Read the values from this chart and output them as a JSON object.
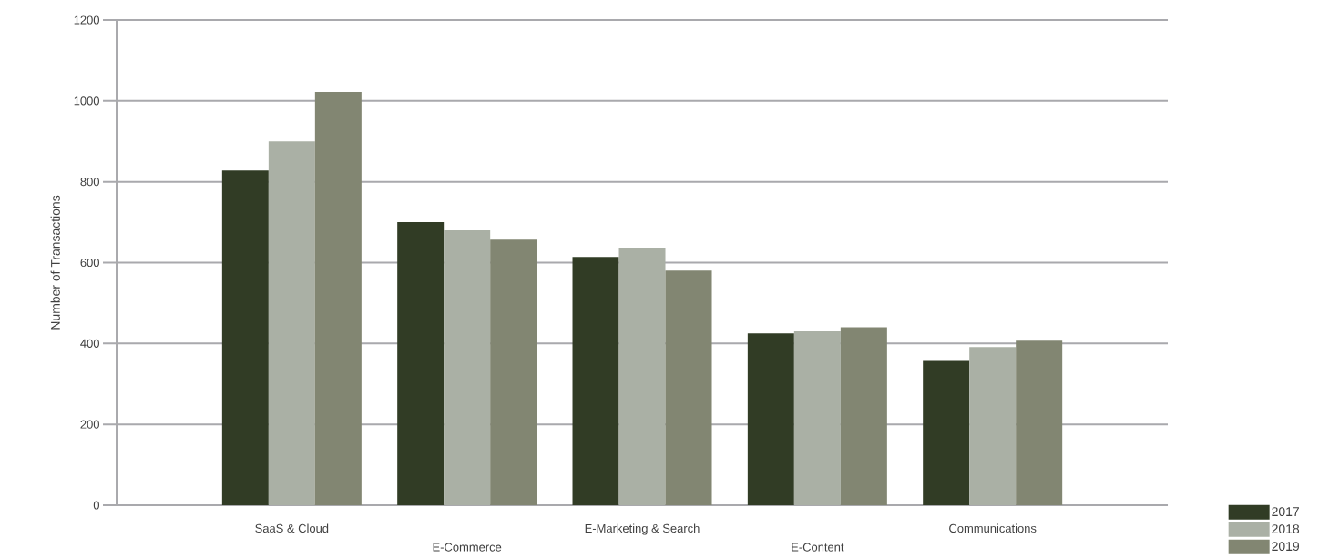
{
  "chart_data": {
    "type": "bar",
    "ylabel": "Number of Transactions",
    "categories": [
      "SaaS & Cloud",
      "E-Commerce",
      "E-Marketing & Search",
      "E-Content",
      "Communications"
    ],
    "series": [
      {
        "name": "2017",
        "color": "#313c25",
        "values": [
          828,
          700,
          614,
          425,
          357
        ]
      },
      {
        "name": "2018",
        "color": "#aab0a5",
        "values": [
          900,
          680,
          637,
          430,
          391
        ]
      },
      {
        "name": "2019",
        "color": "#828672",
        "values": [
          1022,
          657,
          580,
          440,
          407
        ]
      }
    ],
    "ylim": [
      0,
      1200
    ],
    "yticks": [
      0,
      200,
      400,
      600,
      800,
      1000,
      1200
    ],
    "grid": "y",
    "legend": "bottom right"
  }
}
